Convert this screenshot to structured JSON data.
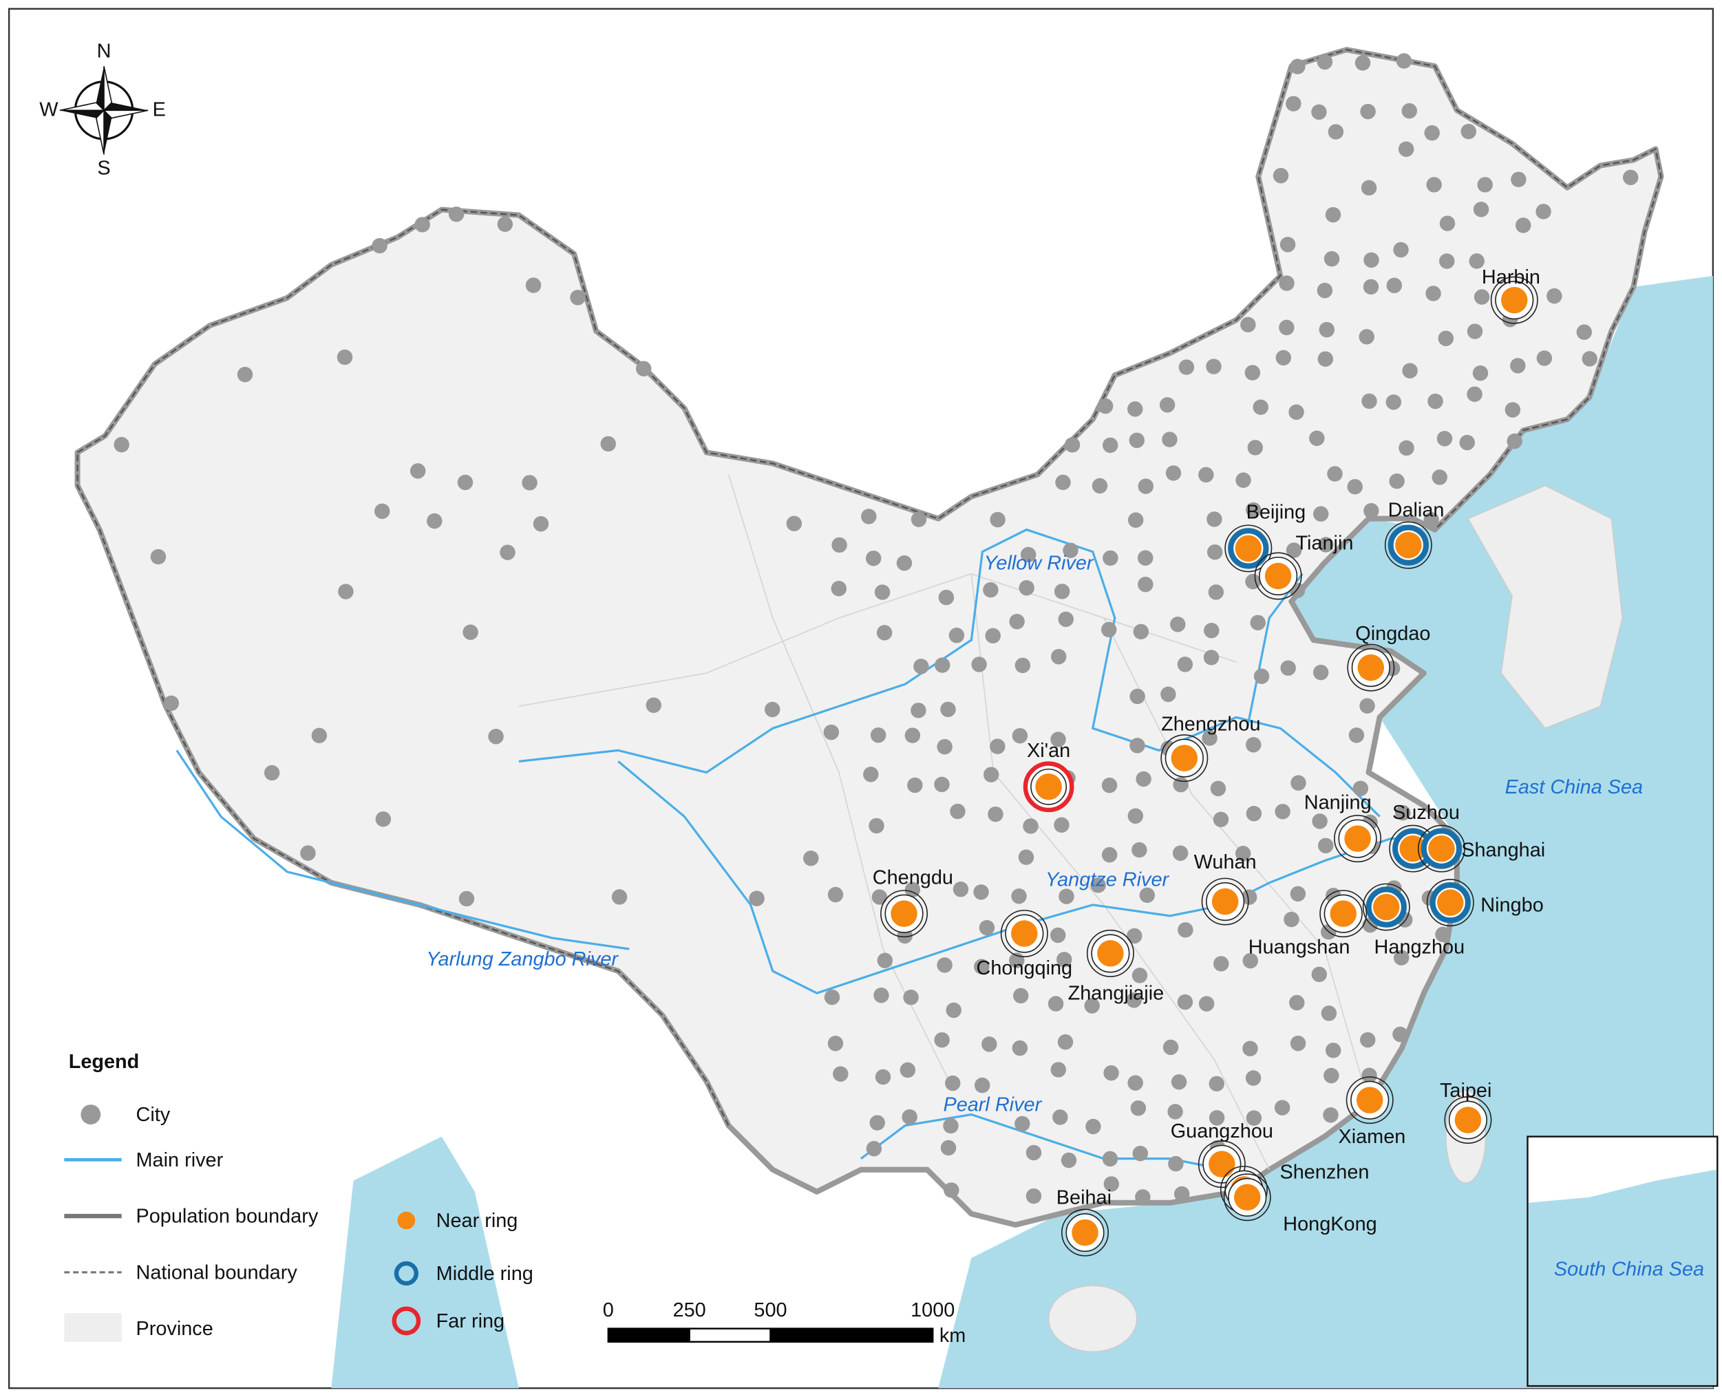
{
  "compass": {
    "north": "N",
    "south": "S",
    "west": "W",
    "east": "E"
  },
  "legend": {
    "title": "Legend",
    "items": [
      "City",
      "Main river",
      "Population boundary",
      "National boundary",
      "Province",
      "Near ring",
      "Middle ring",
      "Far ring"
    ]
  },
  "cities": [
    {
      "name": "Harbin",
      "ring": "near"
    },
    {
      "name": "Beijing",
      "ring": "middle"
    },
    {
      "name": "Tianjin",
      "ring": "near"
    },
    {
      "name": "Dalian",
      "ring": "middle"
    },
    {
      "name": "Qingdao",
      "ring": "near"
    },
    {
      "name": "Zhengzhou",
      "ring": "near"
    },
    {
      "name": "Xi'an",
      "ring": "far"
    },
    {
      "name": "Nanjing",
      "ring": "near"
    },
    {
      "name": "Suzhou",
      "ring": "middle"
    },
    {
      "name": "Shanghai",
      "ring": "middle"
    },
    {
      "name": "Ningbo",
      "ring": "middle"
    },
    {
      "name": "Hangzhou",
      "ring": "middle"
    },
    {
      "name": "Huangshan",
      "ring": "near"
    },
    {
      "name": "Wuhan",
      "ring": "near"
    },
    {
      "name": "Chengdu",
      "ring": "near"
    },
    {
      "name": "Chongqing",
      "ring": "near"
    },
    {
      "name": "Zhangjiajie",
      "ring": "near"
    },
    {
      "name": "Xiamen",
      "ring": "near"
    },
    {
      "name": "Taipei",
      "ring": "near"
    },
    {
      "name": "Guangzhou",
      "ring": "near"
    },
    {
      "name": "Shenzhen",
      "ring": "near"
    },
    {
      "name": "HongKong",
      "ring": "near"
    },
    {
      "name": "Beihai",
      "ring": "near"
    }
  ],
  "rivers": [
    "Yellow River",
    "Yangtze River",
    "Yarlung Zangbo River",
    "Pearl River"
  ],
  "seas": [
    "East China Sea",
    "South China Sea"
  ],
  "scale_bar": {
    "ticks": [
      0,
      250,
      500,
      1000
    ],
    "unit": "km"
  }
}
